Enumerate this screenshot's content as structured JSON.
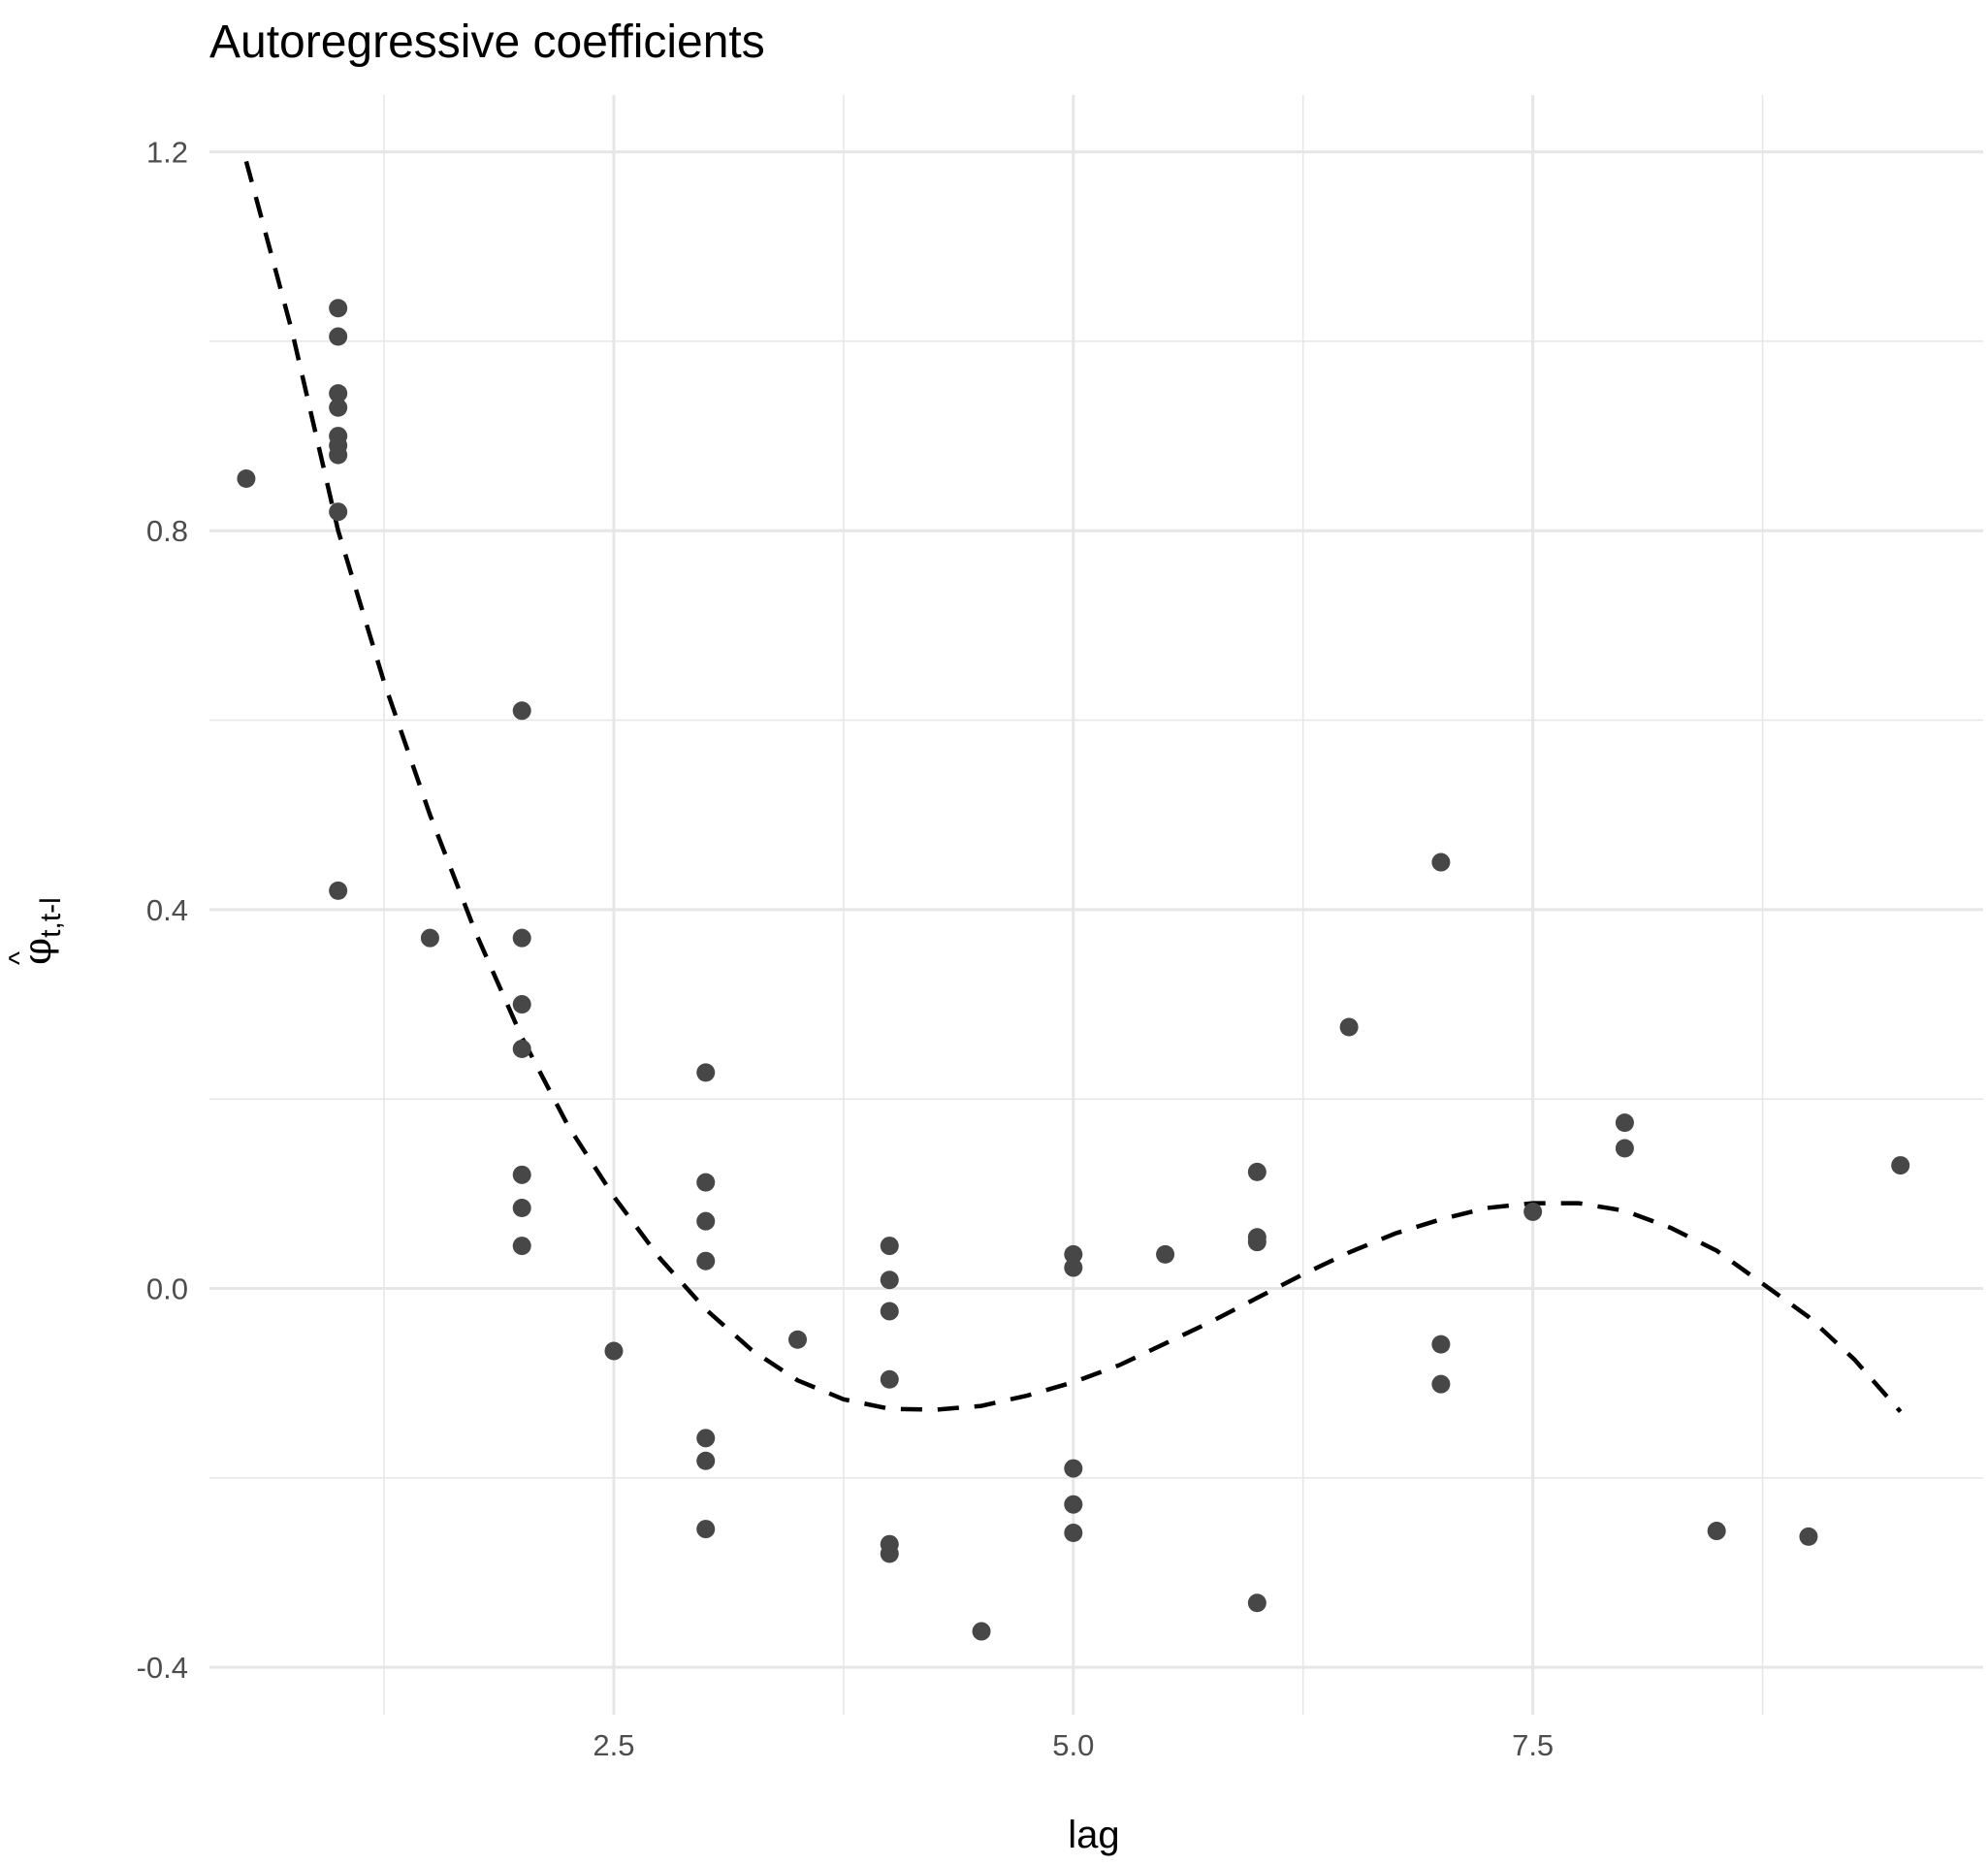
{
  "chart_data": {
    "type": "scatter",
    "title": "Autoregressive coefficients",
    "xlabel": "lag",
    "ylabel": {
      "accent": "^",
      "symbol": "φ",
      "subscript": "t,t-l"
    },
    "xlim": [
      0.3,
      9.95
    ],
    "ylim": [
      -0.45,
      1.26
    ],
    "x_ticks": [
      2.5,
      5.0,
      7.5
    ],
    "x_tick_labels": [
      "2.5",
      "5.0",
      "7.5"
    ],
    "x_minor_ticks": [
      1.25,
      3.75,
      6.25,
      8.75
    ],
    "y_ticks": [
      -0.4,
      0.0,
      0.4,
      0.8,
      1.2
    ],
    "y_tick_labels": [
      "-0.4",
      "0.0",
      "0.4",
      "0.8",
      "1.2"
    ],
    "y_minor_ticks": [
      -0.2,
      0.2,
      0.6,
      1.0
    ],
    "grid": true,
    "colors": {
      "points": "#474747",
      "curve": "#000000",
      "grid": "#e6e6e6"
    },
    "points": [
      {
        "x": 0.5,
        "y": 0.855
      },
      {
        "x": 1,
        "y": 1.035
      },
      {
        "x": 1,
        "y": 1.005
      },
      {
        "x": 1,
        "y": 0.945
      },
      {
        "x": 1,
        "y": 0.93
      },
      {
        "x": 1,
        "y": 0.9
      },
      {
        "x": 1,
        "y": 0.89
      },
      {
        "x": 1,
        "y": 0.88
      },
      {
        "x": 1,
        "y": 0.82
      },
      {
        "x": 1,
        "y": 0.42
      },
      {
        "x": 1.5,
        "y": 0.37
      },
      {
        "x": 2,
        "y": 0.61
      },
      {
        "x": 2,
        "y": 0.37
      },
      {
        "x": 2,
        "y": 0.3
      },
      {
        "x": 2,
        "y": 0.253
      },
      {
        "x": 2,
        "y": 0.12
      },
      {
        "x": 2,
        "y": 0.085
      },
      {
        "x": 2,
        "y": 0.045
      },
      {
        "x": 2.5,
        "y": -0.066
      },
      {
        "x": 3,
        "y": 0.228
      },
      {
        "x": 3,
        "y": 0.112
      },
      {
        "x": 3,
        "y": 0.071
      },
      {
        "x": 3,
        "y": 0.029
      },
      {
        "x": 3,
        "y": -0.158
      },
      {
        "x": 3,
        "y": -0.182
      },
      {
        "x": 3,
        "y": -0.254
      },
      {
        "x": 3.5,
        "y": -0.054
      },
      {
        "x": 4,
        "y": 0.045
      },
      {
        "x": 4,
        "y": 0.009
      },
      {
        "x": 4,
        "y": -0.024
      },
      {
        "x": 4,
        "y": -0.096
      },
      {
        "x": 4,
        "y": -0.27
      },
      {
        "x": 4,
        "y": -0.28
      },
      {
        "x": 4.5,
        "y": -0.362
      },
      {
        "x": 5,
        "y": 0.036
      },
      {
        "x": 5,
        "y": 0.022
      },
      {
        "x": 5,
        "y": -0.19
      },
      {
        "x": 5,
        "y": -0.228
      },
      {
        "x": 5,
        "y": -0.258
      },
      {
        "x": 5.5,
        "y": 0.036
      },
      {
        "x": 6,
        "y": 0.123
      },
      {
        "x": 6,
        "y": 0.054
      },
      {
        "x": 6,
        "y": 0.049
      },
      {
        "x": 6,
        "y": -0.332
      },
      {
        "x": 6.5,
        "y": 0.276
      },
      {
        "x": 7,
        "y": 0.45
      },
      {
        "x": 7,
        "y": -0.059
      },
      {
        "x": 7,
        "y": -0.101
      },
      {
        "x": 7.5,
        "y": 0.081
      },
      {
        "x": 8,
        "y": 0.175
      },
      {
        "x": 8,
        "y": 0.148
      },
      {
        "x": 8.5,
        "y": -0.256
      },
      {
        "x": 9,
        "y": -0.262
      },
      {
        "x": 9.5,
        "y": 0.13
      }
    ],
    "curve": {
      "style": "dashed",
      "x": [
        0.5,
        0.75,
        1.0,
        1.25,
        1.5,
        1.75,
        2.0,
        2.25,
        2.5,
        2.75,
        3.0,
        3.25,
        3.5,
        3.75,
        4.0,
        4.25,
        4.5,
        4.75,
        5.0,
        5.25,
        5.5,
        5.75,
        6.0,
        6.25,
        6.5,
        6.75,
        7.0,
        7.25,
        7.5,
        7.75,
        8.0,
        8.25,
        8.5,
        8.75,
        9.0,
        9.25,
        9.5
      ],
      "y": [
        1.19,
        1.01,
        0.8,
        0.64,
        0.5,
        0.375,
        0.265,
        0.172,
        0.097,
        0.032,
        -0.022,
        -0.065,
        -0.097,
        -0.117,
        -0.127,
        -0.128,
        -0.124,
        -0.113,
        -0.099,
        -0.081,
        -0.058,
        -0.035,
        -0.01,
        0.015,
        0.038,
        0.058,
        0.073,
        0.085,
        0.09,
        0.09,
        0.082,
        0.064,
        0.04,
        0.005,
        -0.03,
        -0.075,
        -0.13
      ]
    }
  }
}
